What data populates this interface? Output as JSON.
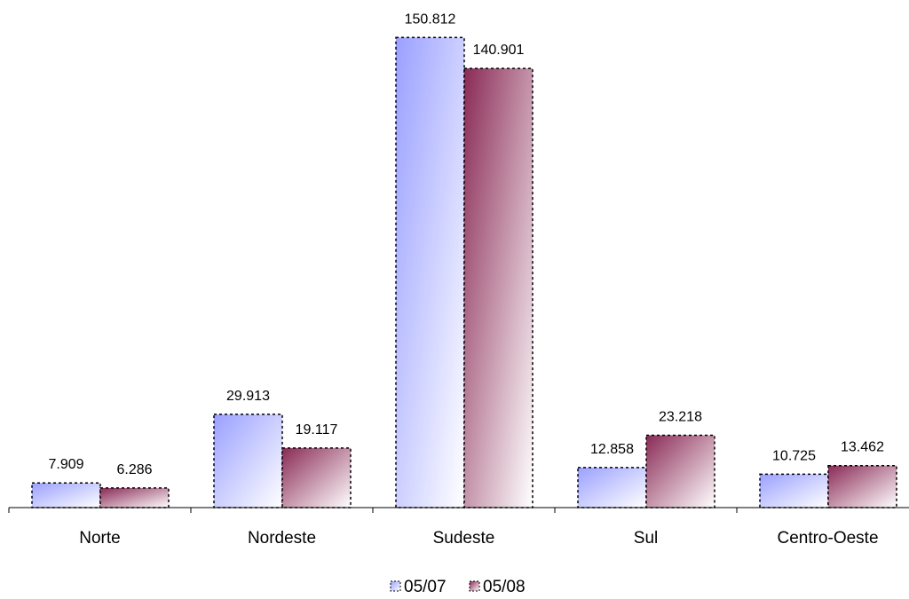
{
  "chart_data": {
    "type": "bar",
    "categories": [
      "Norte",
      "Nordeste",
      "Sudeste",
      "Sul",
      "Centro-Oeste"
    ],
    "series": [
      {
        "name": "05/07",
        "values": [
          7909,
          29913,
          150812,
          12858,
          10725
        ],
        "labels": [
          "7.909",
          "29.913",
          "150.812",
          "12.858",
          "10.725"
        ]
      },
      {
        "name": "05/08",
        "values": [
          6286,
          19117,
          140901,
          23218,
          13462
        ],
        "labels": [
          "6.286",
          "19.117",
          "140.901",
          "23.218",
          "13.462"
        ]
      }
    ],
    "ylim": [
      0,
      160000
    ],
    "grid": false,
    "legend": "bottom",
    "colors": {
      "series1": [
        "#9aa0ff",
        "#ffffff"
      ],
      "series2": [
        "#8a2a56",
        "#ffffff"
      ],
      "border": "#000000",
      "axis": "#000000"
    }
  }
}
